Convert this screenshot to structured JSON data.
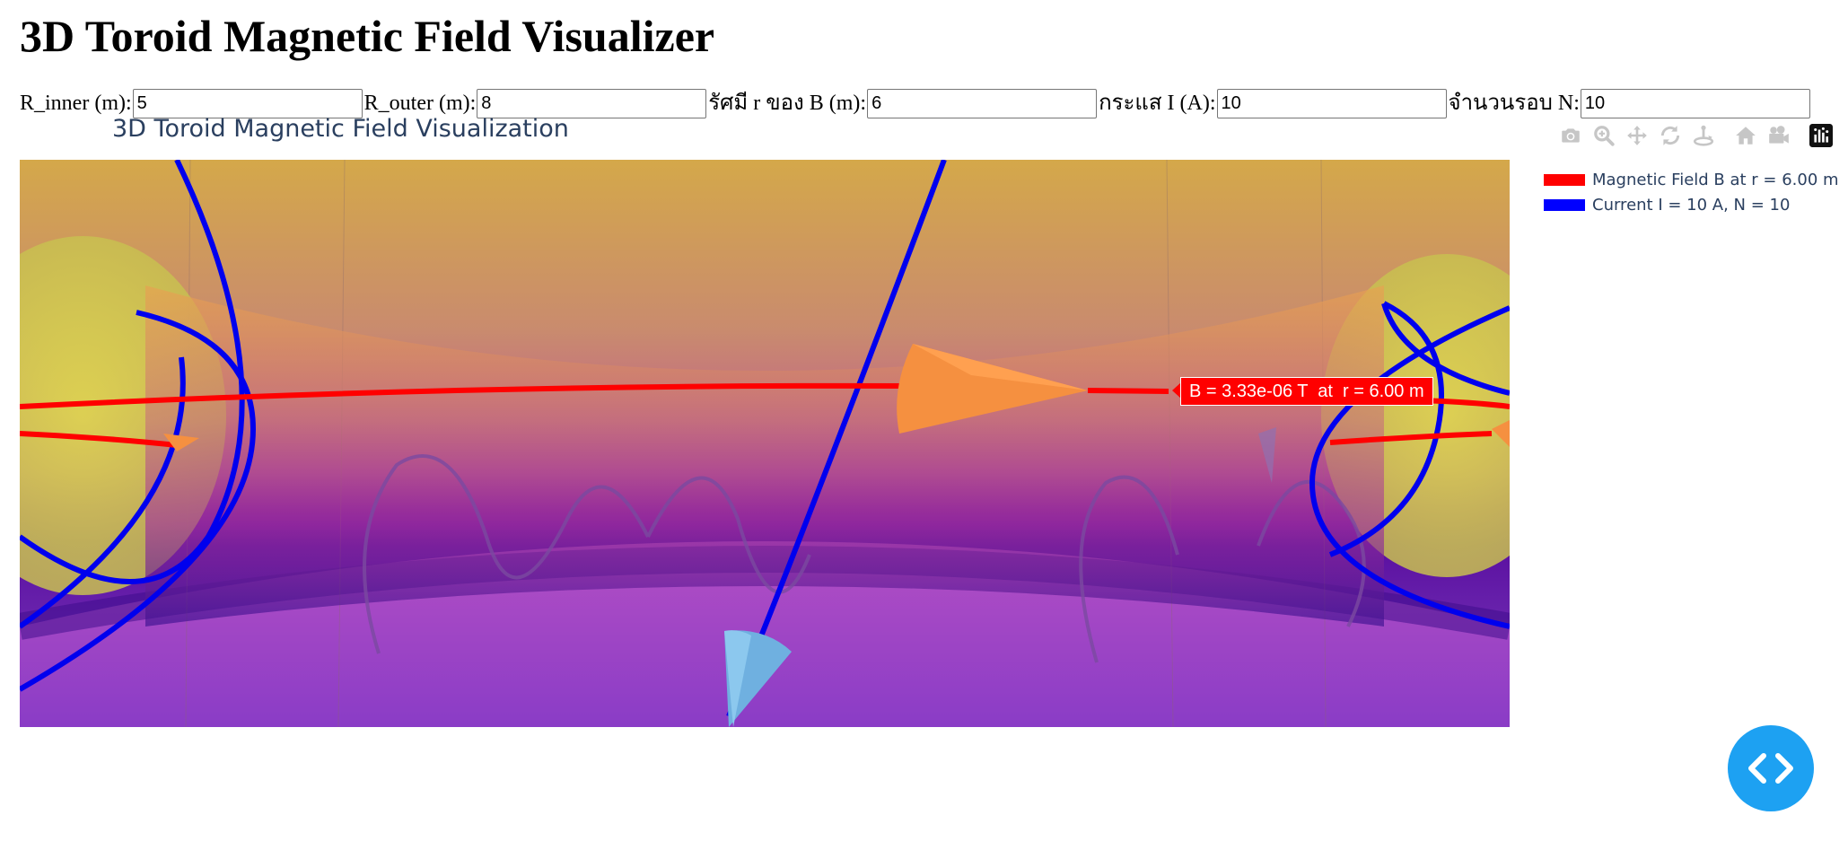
{
  "page": {
    "title": "3D Toroid Magnetic Field Visualizer"
  },
  "controls": {
    "r_inner": {
      "label": "R_inner (m):",
      "value": "5"
    },
    "r_outer": {
      "label": "R_outer (m):",
      "value": "8"
    },
    "r_b": {
      "label": "รัศมี r ของ B (m):",
      "value": "6"
    },
    "current": {
      "label": "กระแส I (A):",
      "value": "10"
    },
    "turns": {
      "label": "จำนวนรอบ N:",
      "value": "10"
    }
  },
  "plot": {
    "title": "3D Toroid Magnetic Field Visualization",
    "legend": [
      {
        "name": "Magnetic Field B at r = 6.00 m",
        "color": "#ff0000"
      },
      {
        "name": "Current I = 10 A, N = 10",
        "color": "#0000ff"
      }
    ],
    "annotation": "B = 3.33e-06 T  at  r = 6.00 m",
    "modebar": [
      {
        "name": "camera-icon",
        "title": "Download plot as a png"
      },
      {
        "name": "zoom-icon",
        "title": "Zoom"
      },
      {
        "name": "pan-icon",
        "title": "Pan"
      },
      {
        "name": "orbit-rotation-icon",
        "title": "Orbital rotation"
      },
      {
        "name": "turntable-rotation-icon",
        "title": "Turntable rotation"
      },
      {
        "name": "home-icon",
        "title": "Reset camera to default"
      },
      {
        "name": "video-camera-icon",
        "title": "Reset camera to last save"
      },
      {
        "name": "plotly-logo-icon",
        "title": "Produced with Plotly"
      }
    ]
  },
  "code_button": {
    "icon": "code-icon"
  }
}
